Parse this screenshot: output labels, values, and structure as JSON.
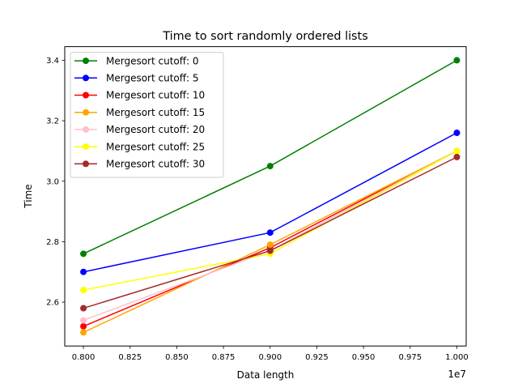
{
  "chart_data": {
    "type": "line",
    "title": "Time to sort randomly ordered lists",
    "xlabel": "Data length",
    "ylabel": "Time",
    "x_multiplier_label": "1e7",
    "x": [
      0.8,
      0.9,
      1.0
    ],
    "xlim": [
      0.79,
      1.005
    ],
    "ylim": [
      2.455,
      3.445
    ],
    "x_ticks": [
      0.8,
      0.825,
      0.85,
      0.875,
      0.9,
      0.925,
      0.95,
      0.975,
      1.0
    ],
    "x_tick_labels": [
      "0.800",
      "0.825",
      "0.850",
      "0.875",
      "0.900",
      "0.925",
      "0.950",
      "0.975",
      "1.000"
    ],
    "y_ticks": [
      2.6,
      2.8,
      3.0,
      3.2,
      3.4
    ],
    "y_tick_labels": [
      "2.6",
      "2.8",
      "3.0",
      "3.2",
      "3.4"
    ],
    "grid": false,
    "legend_position": "top-left",
    "series": [
      {
        "name": "Mergesort cutoff: 0",
        "color": "#008000",
        "values": [
          2.76,
          3.05,
          3.4
        ]
      },
      {
        "name": "Mergesort cutoff: 5",
        "color": "#0000ff",
        "values": [
          2.7,
          2.83,
          3.16
        ]
      },
      {
        "name": "Mergesort cutoff: 10",
        "color": "#ff0000",
        "values": [
          2.52,
          2.78,
          3.1
        ]
      },
      {
        "name": "Mergesort cutoff: 15",
        "color": "#ffa500",
        "values": [
          2.5,
          2.79,
          3.1
        ]
      },
      {
        "name": "Mergesort cutoff: 20",
        "color": "#ffc0cb",
        "values": [
          2.54,
          2.77,
          3.1
        ]
      },
      {
        "name": "Mergesort cutoff: 25",
        "color": "#ffff00",
        "values": [
          2.64,
          2.76,
          3.1
        ]
      },
      {
        "name": "Mergesort cutoff: 30",
        "color": "#a52a2a",
        "values": [
          2.58,
          2.77,
          3.08
        ]
      }
    ]
  }
}
